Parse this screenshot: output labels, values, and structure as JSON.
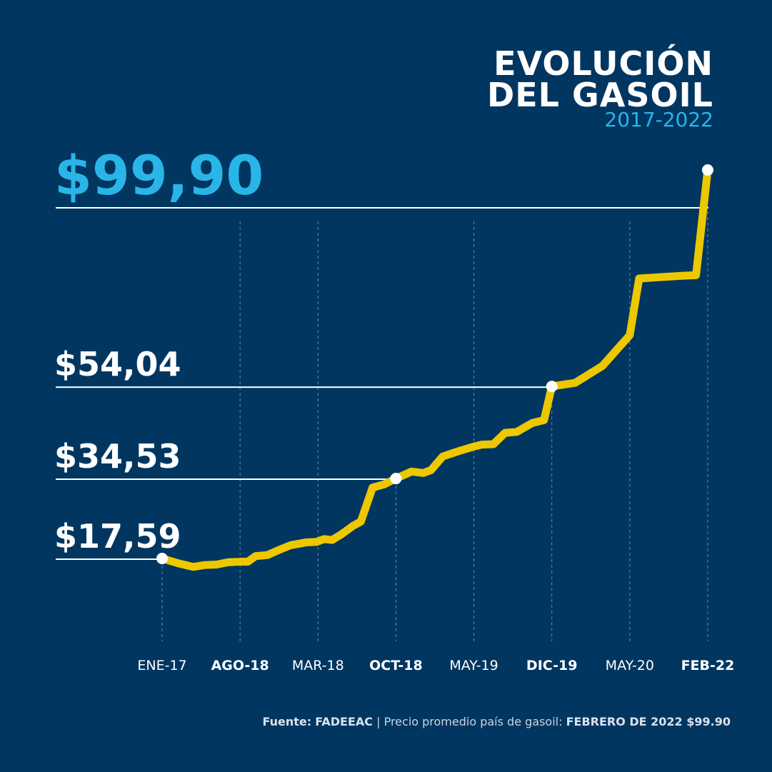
{
  "header": {
    "title_line1": "EVOLUCIÓN",
    "title_line2": "DEL GASOIL",
    "subtitle": "2017-2022"
  },
  "footer": {
    "source_label": "Fuente:",
    "source_name": "FADEEAC",
    "separator": " | ",
    "description": "Precio promedio país de gasoil: ",
    "highlight": "FEBRERO DE 2022 $99.90"
  },
  "colors": {
    "background": "#003660",
    "line": "#edc800",
    "highlight_value": "#29b5e8",
    "text": "#ffffff",
    "gridline": "#6f8aa5"
  },
  "chart_data": {
    "type": "line",
    "title": "EVOLUCIÓN DEL GASOIL",
    "subtitle": "2017-2022",
    "xlabel": "",
    "ylabel": "",
    "x_ticks": [
      {
        "label": "ENE-17",
        "bold": false
      },
      {
        "label": "AGO-18",
        "bold": true
      },
      {
        "label": "MAR-18",
        "bold": false
      },
      {
        "label": "OCT-18",
        "bold": true
      },
      {
        "label": "MAY-19",
        "bold": false
      },
      {
        "label": "DIC-19",
        "bold": true
      },
      {
        "label": "MAY-20",
        "bold": false
      },
      {
        "label": "FEB-22",
        "bold": true
      }
    ],
    "highlights": [
      {
        "label": "$17,59",
        "value": 17.59,
        "x": 0
      },
      {
        "label": "$34,53",
        "value": 34.53,
        "x": 3
      },
      {
        "label": "$54,04",
        "value": 54.04,
        "x": 5
      },
      {
        "label": "$99,90",
        "value": 99.9,
        "x": 7,
        "accent": true
      }
    ],
    "series": [
      {
        "values": [
          [
            0,
            17.59
          ],
          [
            0.2,
            16.6
          ],
          [
            0.4,
            15.8
          ],
          [
            0.55,
            16.2
          ],
          [
            0.7,
            16.3
          ],
          [
            0.85,
            16.8
          ],
          [
            1.0,
            16.9
          ],
          [
            1.1,
            16.9
          ],
          [
            1.2,
            18.1
          ],
          [
            1.35,
            18.3
          ],
          [
            1.5,
            19.4
          ],
          [
            1.65,
            20.4
          ],
          [
            1.85,
            21.0
          ],
          [
            1.98,
            21.1
          ],
          [
            2.08,
            21.7
          ],
          [
            2.18,
            21.5
          ],
          [
            2.3,
            22.7
          ],
          [
            2.45,
            24.5
          ],
          [
            2.55,
            25.4
          ],
          [
            2.7,
            32.6
          ],
          [
            2.85,
            33.3
          ],
          [
            3.0,
            34.53
          ],
          [
            3.2,
            36.0
          ],
          [
            3.35,
            35.7
          ],
          [
            3.45,
            36.3
          ],
          [
            3.6,
            39.2
          ],
          [
            3.8,
            40.3
          ],
          [
            4.0,
            41.3
          ],
          [
            4.1,
            41.7
          ],
          [
            4.25,
            41.8
          ],
          [
            4.4,
            44.2
          ],
          [
            4.55,
            44.4
          ],
          [
            4.75,
            46.3
          ],
          [
            4.9,
            46.9
          ],
          [
            5.0,
            54.04
          ],
          [
            5.3,
            54.8
          ],
          [
            5.65,
            58.4
          ],
          [
            6.0,
            64.9
          ],
          [
            6.12,
            76.9
          ],
          [
            6.4,
            77.2
          ],
          [
            6.7,
            77.5
          ],
          [
            6.85,
            77.6
          ],
          [
            7.0,
            99.9
          ]
        ]
      }
    ],
    "ylim": [
      0,
      110
    ],
    "grid": "vertical-dashed"
  }
}
